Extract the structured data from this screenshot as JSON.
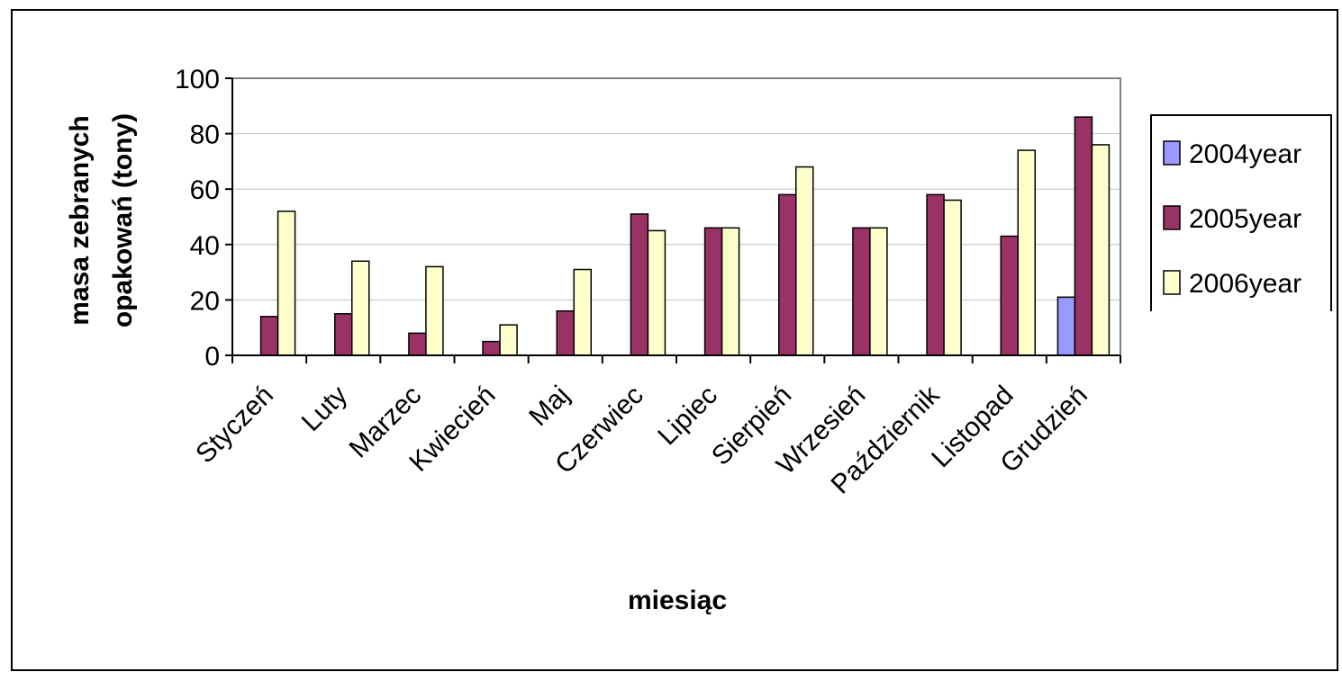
{
  "chart_data": {
    "type": "bar",
    "categories": [
      "Styczeń",
      "Luty",
      "Marzec",
      "Kwiecień",
      "Maj",
      "Czerwiec",
      "Lipiec",
      "Sierpień",
      "Wrzesień",
      "Październik",
      "Listopad",
      "Grudzień"
    ],
    "series": [
      {
        "name": "2004year",
        "color": "#9999ff",
        "values": [
          0,
          0,
          0,
          0,
          0,
          0,
          0,
          0,
          0,
          0,
          0,
          21
        ]
      },
      {
        "name": "2005year",
        "color": "#993366",
        "values": [
          14,
          15,
          8,
          5,
          16,
          51,
          46,
          58,
          46,
          58,
          43,
          86
        ]
      },
      {
        "name": "2006year",
        "color": "#ffffcc",
        "values": [
          52,
          34,
          32,
          11,
          31,
          45,
          46,
          68,
          46,
          56,
          74,
          76
        ]
      }
    ],
    "title": "",
    "xlabel": "miesiąc",
    "ylabel_line1": "masa zebranych",
    "ylabel_line2": "opakowań (tony)",
    "ylim": [
      0,
      100
    ],
    "yticks": [
      0,
      20,
      40,
      60,
      80,
      100
    ],
    "grid": true,
    "legend_position": "right"
  }
}
